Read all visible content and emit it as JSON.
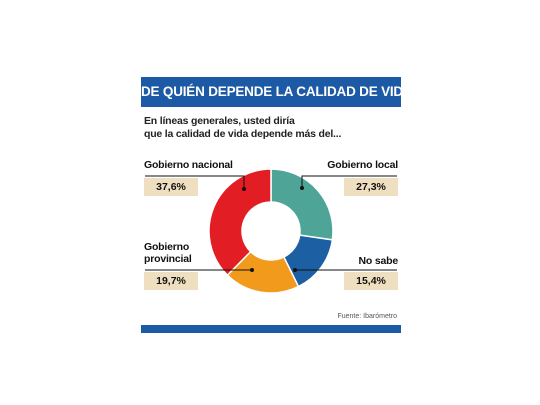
{
  "header": {
    "title": "DE QUIÉN DEPENDE LA CALIDAD DE VIDA"
  },
  "question": {
    "line1": "En líneas generales, usted diría",
    "line2": "que la calidad de vida depende más del..."
  },
  "source": "Fuente: Ibarómetro",
  "chart_data": {
    "type": "pie",
    "donut": true,
    "categories": [
      "Gobierno local",
      "No sabe",
      "Gobierno provincial",
      "Gobierno nacional"
    ],
    "values": [
      27.3,
      15.4,
      19.7,
      37.6
    ],
    "value_labels": [
      "27,3%",
      "15,4%",
      "19,7%",
      "37,6%"
    ],
    "colors": [
      "#4ea597",
      "#1c5fa3",
      "#f29a1c",
      "#e21e24"
    ],
    "labels": {
      "nacional": "Gobierno nacional",
      "local": "Gobierno local",
      "provincial_line1": "Gobierno",
      "provincial_line2": "provincial",
      "nosabe": "No sabe"
    },
    "title": "",
    "legend": "none"
  }
}
